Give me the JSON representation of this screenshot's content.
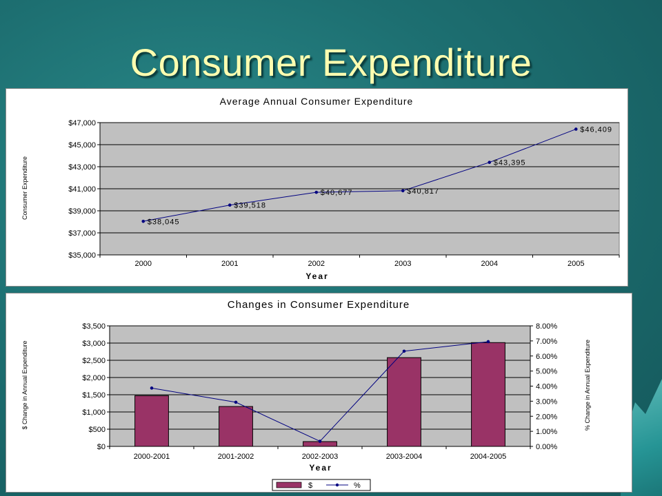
{
  "slide": {
    "title": "Consumer Expenditure"
  },
  "colors": {
    "plot_bg": "#c0c0c0",
    "line": "#000080",
    "bar": "#993366",
    "title": "#ffffb0"
  },
  "chart_data": [
    {
      "type": "line",
      "title": "Average Annual Consumer Expenditure",
      "xlabel": "Year",
      "ylabel": "Consumer Expenditure",
      "x": [
        "2000",
        "2001",
        "2002",
        "2003",
        "2004",
        "2005"
      ],
      "values": [
        38045,
        39518,
        40677,
        40817,
        43395,
        46409
      ],
      "data_labels": [
        "$38,045",
        "$39,518",
        "$40,677",
        "$40,817",
        "$43,395",
        "$46,409"
      ],
      "yticks": [
        "$35,000",
        "$37,000",
        "$39,000",
        "$41,000",
        "$43,000",
        "$45,000",
        "$47,000"
      ],
      "ylim": [
        35000,
        47000
      ],
      "grid": true
    },
    {
      "type": "bar",
      "title": "Changes in Consumer Expenditure",
      "xlabel": "Year",
      "ylabel": "$ Change in Annual Expenditure",
      "y2label": "% Change in Annual Expenditure",
      "categories": [
        "2000-2001",
        "2001-2002",
        "2002-2003",
        "2003-2004",
        "2004-2005"
      ],
      "series": [
        {
          "name": "$",
          "type": "bar",
          "axis": "left",
          "values": [
            1473,
            1159,
            140,
            2578,
            3014
          ]
        },
        {
          "name": "%",
          "type": "line",
          "axis": "right",
          "values": [
            3.87,
            2.93,
            0.34,
            6.32,
            6.95
          ]
        }
      ],
      "yticks": [
        "$0",
        "$500",
        "$1,000",
        "$1,500",
        "$2,000",
        "$2,500",
        "$3,000",
        "$3,500"
      ],
      "y2ticks": [
        "0.00%",
        "1.00%",
        "2.00%",
        "3.00%",
        "4.00%",
        "5.00%",
        "6.00%",
        "7.00%",
        "8.00%"
      ],
      "ylim": [
        0,
        3500
      ],
      "y2lim": [
        0,
        8
      ],
      "grid": true,
      "legend": "bottom"
    }
  ]
}
